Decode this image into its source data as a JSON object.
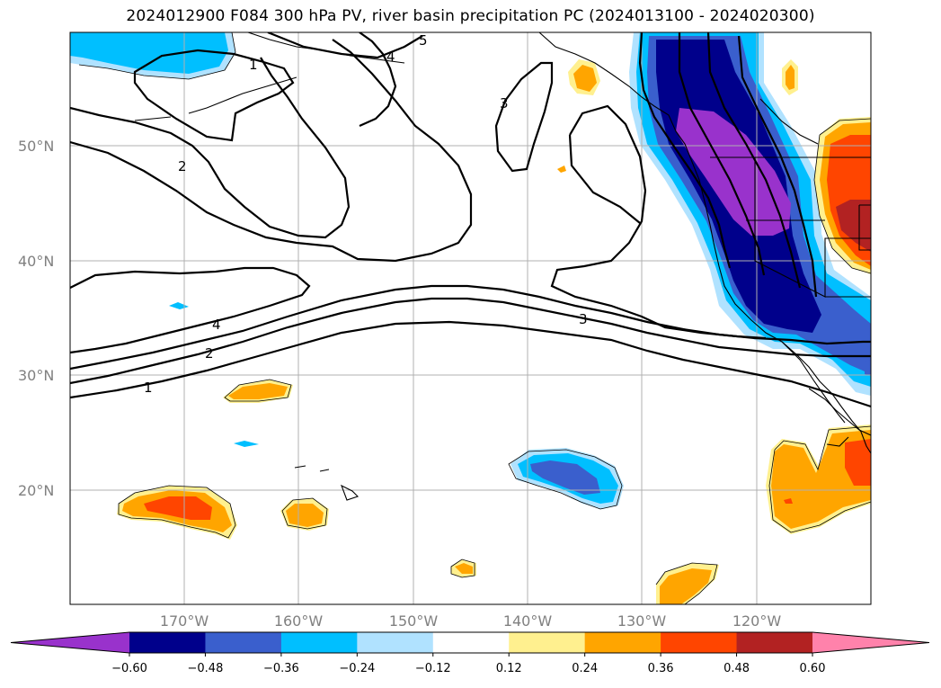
{
  "title": "2024012900 F084 300 hPa PV, river basin precipitation PC (2024013100 - 2024020300)",
  "lat_labels": [
    "50°N",
    "40°N",
    "30°N",
    "20°N"
  ],
  "lon_labels": [
    "170°W",
    "160°W",
    "150°W",
    "140°W",
    "130°W",
    "120°W"
  ],
  "colorbar": {
    "ticks": [
      "−0.60",
      "−0.48",
      "−0.36",
      "−0.24",
      "−0.12",
      "0.12",
      "0.24",
      "0.36",
      "0.48",
      "0.60"
    ],
    "colors": [
      "#9932cc",
      "#00008b",
      "#3a5fcd",
      "#00bfff",
      "#b0e2ff",
      "#ffffff",
      "#fff08f",
      "#ffa500",
      "#ff4500",
      "#b22222",
      "#ff82ab"
    ],
    "extend": "both"
  },
  "contour_labels": [
    {
      "text": "1"
    },
    {
      "text": "5"
    },
    {
      "text": "4"
    },
    {
      "text": "3"
    },
    {
      "text": "2"
    },
    {
      "text": "4"
    },
    {
      "text": "2"
    },
    {
      "text": "1"
    },
    {
      "text": "3"
    }
  ],
  "colors": {
    "purple": "#9932cc",
    "navy": "#00008b",
    "royal": "#3a5fcd",
    "sky": "#00bfff",
    "light_sky": "#b0e2ff",
    "light_yellow": "#fff08f",
    "orange": "#ffa500",
    "red_orange": "#ff4500",
    "firebrick": "#b22222",
    "pink": "#ff82ab",
    "gridline": "#b0b0b0",
    "tick_label": "#808080"
  }
}
